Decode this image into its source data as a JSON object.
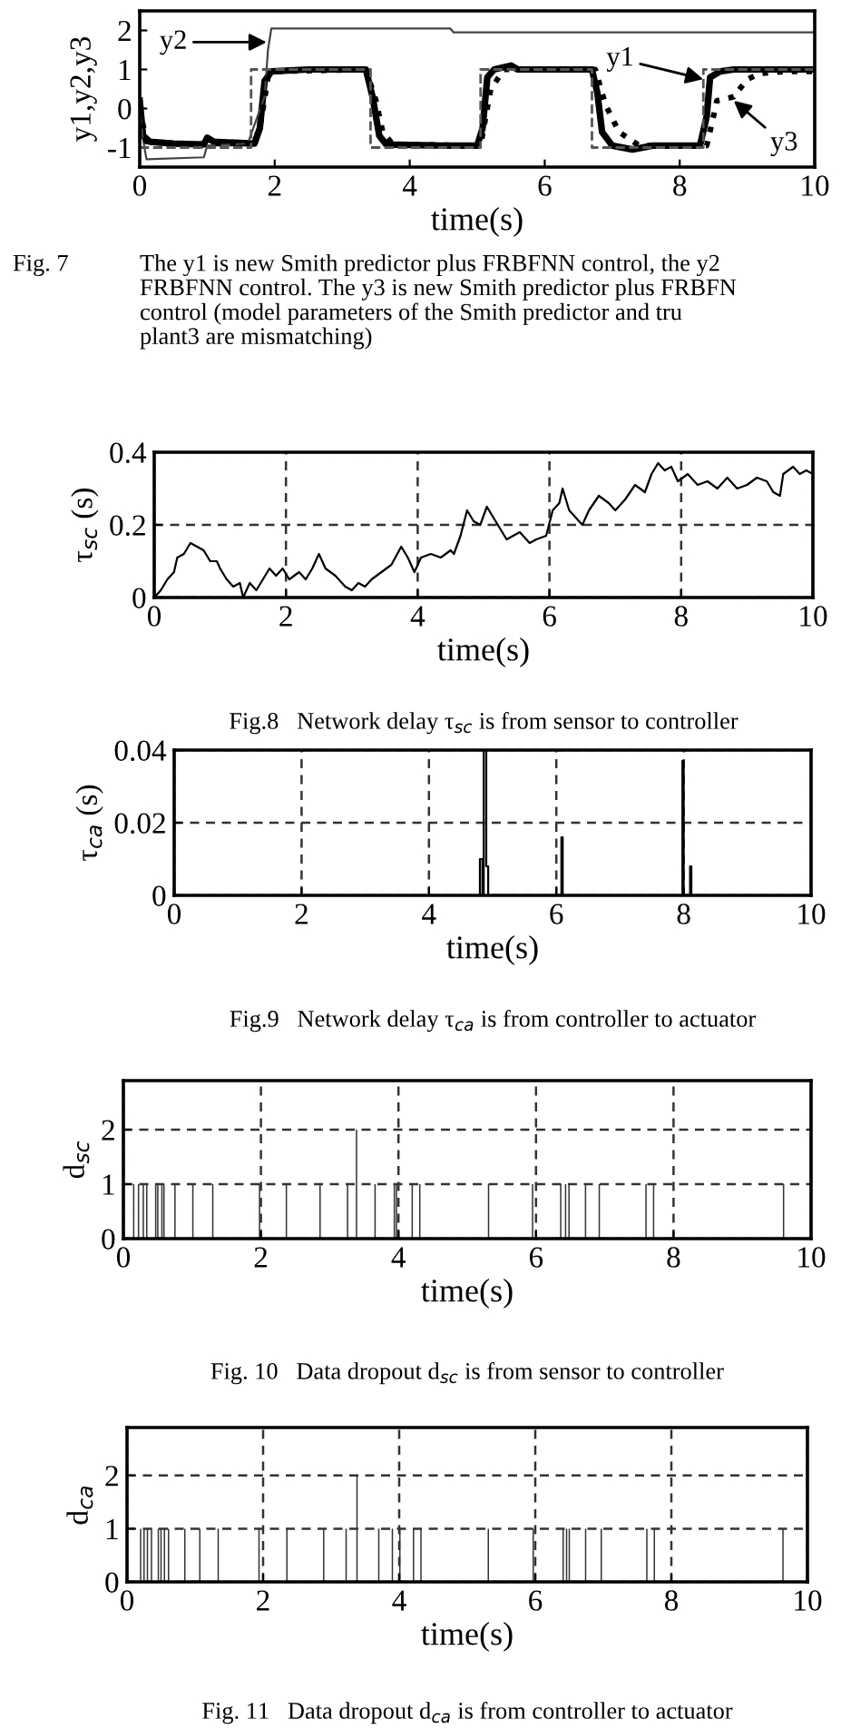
{
  "chart_data": [
    {
      "type": "line",
      "xlabel": "time(s)",
      "ylabel": "y1,y2,y3",
      "xlim": [
        0,
        10
      ],
      "xticks": [
        0,
        2,
        4,
        6,
        8,
        10
      ],
      "ylim": [
        -1.5,
        2.5
      ],
      "yticks": [
        -1,
        0,
        1,
        2
      ],
      "series": [
        {
          "color": "#000000",
          "line_style": "solid",
          "x": [
            0,
            0.05,
            0.15,
            0.5,
            0.95,
            1.0,
            1.1,
            1.7,
            1.78,
            1.85,
            1.95,
            2.5,
            3.35,
            3.45,
            3.55,
            3.65,
            4.5,
            5.0,
            5.08,
            5.15,
            5.25,
            5.5,
            5.6,
            6.7,
            6.78,
            6.85,
            7.0,
            7.3,
            7.6,
            8.3,
            8.4,
            8.45,
            8.6,
            8.8,
            10
          ],
          "values": [
            0.2,
            -0.7,
            -0.85,
            -0.9,
            -0.92,
            -0.75,
            -0.85,
            -0.9,
            -0.5,
            0.7,
            0.95,
            1.0,
            1.0,
            0.3,
            -0.7,
            -0.92,
            -0.95,
            -0.95,
            -0.5,
            0.8,
            1.0,
            1.1,
            1.0,
            1.0,
            0.4,
            -0.6,
            -0.95,
            -1.05,
            -0.95,
            -0.95,
            -0.2,
            0.8,
            0.95,
            1.0,
            1.0
          ]
        },
        {
          "color": "#444444",
          "line_style": "solid",
          "x": [
            0,
            0.05,
            0.1,
            0.95,
            1.0,
            1.6,
            1.85,
            1.9,
            1.95,
            4.6,
            4.65,
            10
          ],
          "values": [
            0,
            -0.8,
            -1.3,
            -1.25,
            -0.95,
            -0.9,
            0.3,
            1.5,
            2.05,
            2.05,
            1.95,
            1.95
          ]
        },
        {
          "color": "#000000",
          "line_style": "dotted",
          "x": [
            0,
            0.1,
            0.5,
            1.7,
            1.8,
            1.9,
            2.05,
            3.35,
            3.5,
            3.6,
            3.75,
            5.05,
            5.2,
            5.4,
            6.75,
            6.9,
            7.1,
            7.4,
            8.4,
            8.5,
            8.55,
            8.8,
            9.0,
            9.2,
            9.6,
            10
          ],
          "values": [
            0,
            -0.85,
            -0.9,
            -0.9,
            -0.3,
            0.8,
            0.95,
            1.0,
            0.2,
            -0.6,
            -0.92,
            -0.95,
            0.5,
            1.0,
            1.0,
            0.1,
            -0.6,
            -0.95,
            -0.95,
            -0.2,
            0.2,
            0.3,
            0.75,
            0.9,
            0.95,
            0.95
          ]
        },
        {
          "color": "#555555",
          "line_style": "dashed",
          "x": [
            0,
            1.65,
            1.65,
            3.42,
            3.42,
            5.05,
            5.05,
            6.7,
            6.7,
            8.35,
            8.35,
            10
          ],
          "values": [
            -1,
            -1,
            1,
            1,
            -1,
            -1,
            1,
            1,
            -1,
            -1,
            1,
            1
          ]
        }
      ],
      "annotations": [
        {
          "text": "y2",
          "x": 1.88,
          "y": 1.7
        },
        {
          "text": "y1",
          "x": 8.35,
          "y": 0.75
        },
        {
          "text": "y3",
          "x": 8.8,
          "y": 0.2
        },
        "Fig. 7",
        "The y1 is new Smith predictor plus FRBFNN control, the y2\nFRBFNN control. The y3 is new Smith predictor plus FRBFN\ncontrol (model parameters of the Smith predictor and tru\nplant3 are mismatching)"
      ]
    },
    {
      "type": "line",
      "xlabel": "time(s)",
      "ylabel": "τ$_{sc}$ (s)",
      "xlim": [
        0,
        10
      ],
      "xticks": [
        0,
        2,
        4,
        6,
        8,
        10
      ],
      "ylim": [
        0,
        0.4
      ],
      "yticks": [
        0,
        0.2,
        0.4
      ],
      "grid": true,
      "series": [
        {
          "color": "#000000",
          "line_style": "solid",
          "x": [
            0,
            0.1,
            0.2,
            0.3,
            0.35,
            0.45,
            0.55,
            0.65,
            0.75,
            0.85,
            0.95,
            1.0,
            1.1,
            1.2,
            1.3,
            1.35,
            1.45,
            1.55,
            1.65,
            1.75,
            1.85,
            1.95,
            2.05,
            2.2,
            2.3,
            2.4,
            2.5,
            2.6,
            2.75,
            2.9,
            3.0,
            3.1,
            3.2,
            3.3,
            3.45,
            3.6,
            3.75,
            3.85,
            3.95,
            4.05,
            4.2,
            4.35,
            4.5,
            4.55,
            4.65,
            4.75,
            4.85,
            4.95,
            5.05,
            5.15,
            5.25,
            5.35,
            5.45,
            5.55,
            5.7,
            5.8,
            5.95,
            6.05,
            6.15,
            6.2,
            6.3,
            6.4,
            6.5,
            6.6,
            6.75,
            6.9,
            7.0,
            7.15,
            7.3,
            7.45,
            7.55,
            7.65,
            7.75,
            7.85,
            7.95,
            8.1,
            8.25,
            8.4,
            8.55,
            8.7,
            8.85,
            9.0,
            9.15,
            9.3,
            9.4,
            9.5,
            9.55,
            9.7,
            9.8,
            9.9,
            10
          ],
          "values": [
            0.0,
            0.02,
            0.05,
            0.07,
            0.11,
            0.12,
            0.15,
            0.14,
            0.13,
            0.1,
            0.1,
            0.08,
            0.05,
            0.03,
            0.04,
            0.0,
            0.04,
            0.02,
            0.05,
            0.08,
            0.06,
            0.08,
            0.05,
            0.07,
            0.05,
            0.08,
            0.12,
            0.08,
            0.06,
            0.03,
            0.02,
            0.04,
            0.03,
            0.05,
            0.07,
            0.09,
            0.14,
            0.11,
            0.07,
            0.11,
            0.12,
            0.11,
            0.13,
            0.12,
            0.17,
            0.24,
            0.21,
            0.2,
            0.25,
            0.22,
            0.19,
            0.16,
            0.17,
            0.18,
            0.15,
            0.16,
            0.17,
            0.24,
            0.26,
            0.3,
            0.24,
            0.22,
            0.2,
            0.24,
            0.28,
            0.26,
            0.24,
            0.27,
            0.31,
            0.29,
            0.34,
            0.37,
            0.35,
            0.36,
            0.32,
            0.34,
            0.31,
            0.32,
            0.3,
            0.33,
            0.3,
            0.31,
            0.33,
            0.32,
            0.29,
            0.28,
            0.34,
            0.36,
            0.34,
            0.35,
            0.34
          ]
        }
      ],
      "annotations": [
        "Fig.8   Network delay τ$_{sc}$ is from sensor to controller"
      ]
    },
    {
      "type": "line",
      "xlabel": "time(s)",
      "ylabel": "τ$_{ca}$ (s)",
      "xlim": [
        0,
        10
      ],
      "xticks": [
        0,
        2,
        4,
        6,
        8,
        10
      ],
      "ylim": [
        0,
        0.04
      ],
      "yticks": [
        0,
        0.02,
        0.04
      ],
      "grid": true,
      "series": [
        {
          "color": "#000000",
          "line_style": "solid",
          "x": [
            0,
            4.8,
            4.8,
            4.84,
            4.84,
            4.86,
            4.86,
            4.9,
            4.9,
            4.93,
            4.93,
            6.08,
            6.08,
            6.1,
            6.1,
            7.98,
            7.98,
            8.0,
            8.0,
            8.1,
            8.1,
            8.12,
            8.12,
            10
          ],
          "values": [
            0,
            0,
            0.01,
            0.01,
            0,
            0,
            0.04,
            0.04,
            0.008,
            0.008,
            0,
            0,
            0.016,
            0.016,
            0,
            0,
            0.037,
            0.037,
            0,
            0,
            0.008,
            0.008,
            0,
            0
          ]
        }
      ],
      "annotations": [
        "Fig.9   Network delay τ$_{ca}$ is from controller to actuator"
      ]
    },
    {
      "type": "bar",
      "xlabel": "time(s)",
      "ylabel": "d$_{sc}$",
      "xlim": [
        0,
        10
      ],
      "xticks": [
        0,
        2,
        4,
        6,
        8,
        10
      ],
      "ylim": [
        0,
        2.9
      ],
      "yticks": [
        0,
        1,
        2
      ],
      "grid": true,
      "series": [
        {
          "color": "#333333",
          "x": [
            0.15,
            0.22,
            0.29,
            0.34,
            0.47,
            0.5,
            0.56,
            0.59,
            0.75,
            1.01,
            1.3,
            1.98,
            2.37,
            2.86,
            3.26,
            3.39,
            3.66,
            3.94,
            3.97,
            4.2,
            4.31,
            5.31,
            5.95,
            6.36,
            6.43,
            6.48,
            6.72,
            6.92,
            7.6,
            7.71,
            9.6
          ],
          "values": [
            1,
            1,
            1,
            1,
            1,
            1,
            1,
            1,
            1,
            1,
            1,
            1,
            1,
            1,
            1,
            2,
            1,
            1,
            1,
            1,
            1,
            1,
            1,
            1,
            1,
            1,
            1,
            1,
            1,
            1,
            1
          ]
        }
      ],
      "annotations": [
        "Fig. 10   Data dropout d$_{sc}$ is from sensor to controller"
      ]
    },
    {
      "type": "bar",
      "xlabel": "time(s)",
      "ylabel": "d$_{ca}$",
      "xlim": [
        0,
        10
      ],
      "xticks": [
        0,
        2,
        4,
        6,
        8,
        10
      ],
      "ylim": [
        0,
        2.9
      ],
      "yticks": [
        0,
        1,
        2
      ],
      "grid": true,
      "series": [
        {
          "color": "#333333",
          "x": [
            0.2,
            0.25,
            0.3,
            0.36,
            0.46,
            0.5,
            0.55,
            0.61,
            0.85,
            1.07,
            1.34,
            1.94,
            2.35,
            2.89,
            3.22,
            3.38,
            3.7,
            3.9,
            4.01,
            4.21,
            4.32,
            5.31,
            5.97,
            6.41,
            6.46,
            6.5,
            6.74,
            6.97,
            7.64,
            7.75,
            9.64
          ],
          "values": [
            1,
            1,
            1,
            1,
            1,
            1,
            1,
            1,
            1,
            1,
            1,
            1,
            1,
            1,
            1,
            2,
            1,
            1,
            1,
            1,
            1,
            1,
            1,
            1,
            1,
            1,
            1,
            1,
            1,
            1,
            1
          ]
        }
      ],
      "annotations": [
        "Fig. 11   Data dropout d$_{ca}$ is from controller to actuator"
      ]
    }
  ]
}
